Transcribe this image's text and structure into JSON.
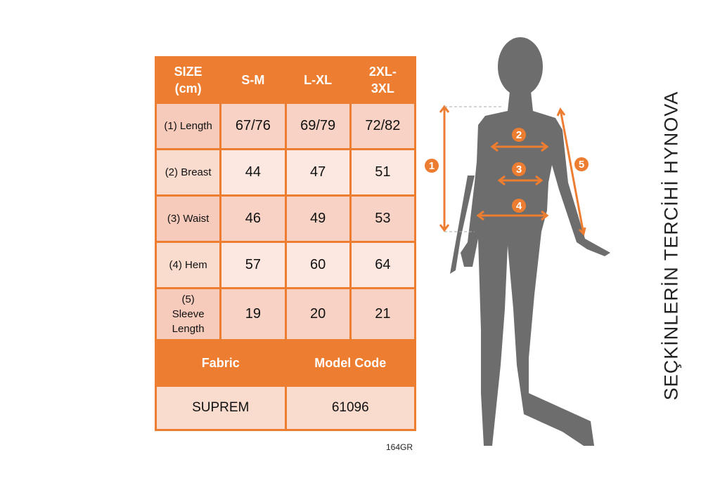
{
  "table": {
    "header": [
      "SIZE (cm)",
      "S-M",
      "L-XL",
      "2XL-3XL"
    ],
    "rows": [
      {
        "label": "(1) Length",
        "values": [
          "67/76",
          "69/79",
          "72/82"
        ]
      },
      {
        "label": "(2) Breast",
        "values": [
          "44",
          "47",
          "51"
        ]
      },
      {
        "label": "(3) Waist",
        "values": [
          "46",
          "49",
          "53"
        ]
      },
      {
        "label": "(4) Hem",
        "values": [
          "57",
          "60",
          "64"
        ]
      },
      {
        "label": "(5) Sleeve Length",
        "values": [
          "19",
          "20",
          "21"
        ]
      }
    ],
    "footer_headers": [
      "Fabric",
      "Model Code"
    ],
    "footer_values": [
      "SUPREM",
      "61096"
    ]
  },
  "code": "164GR",
  "watermark": "SEÇKİNLERİN TERCİHİ HYNOVA",
  "figure": {
    "markers": [
      "1",
      "2",
      "3",
      "4",
      "5"
    ]
  },
  "colors": {
    "accent": "#ed7d31",
    "silhouette": "#6d6d6d"
  }
}
